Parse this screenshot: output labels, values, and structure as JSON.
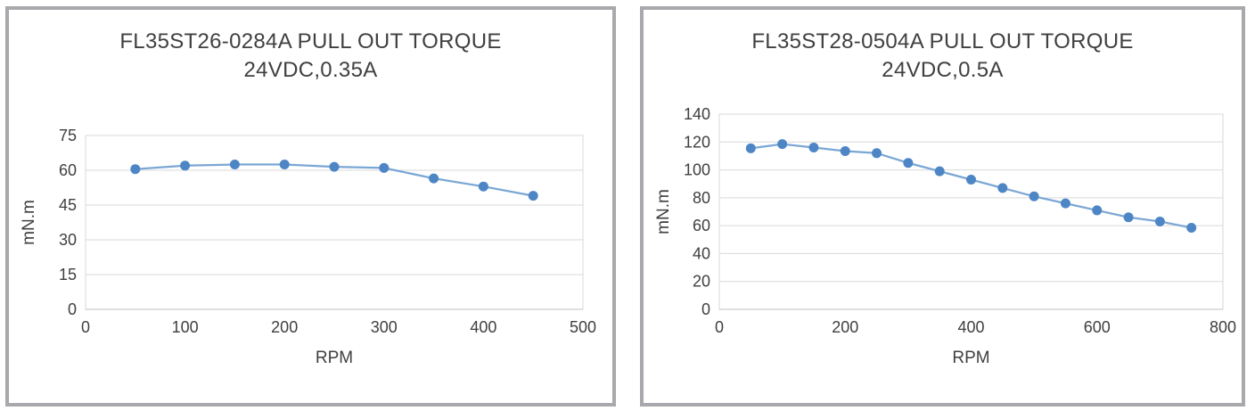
{
  "window": {
    "background": "#ffffff"
  },
  "colors": {
    "panel_border": "#a9a9ad",
    "grid": "#d9d9d9",
    "plot_border": "#d9d9d9",
    "axis_line": "#c2c2c2",
    "text": "#3f3f3f",
    "series_line": "#7ba7d4",
    "series_marker": "#4e86c5"
  },
  "chart_data": [
    {
      "type": "line",
      "title": "FL35ST26-0284A PULL OUT TORQUE 24VDC,0.35A",
      "title_line1": "FL35ST26-0284A PULL OUT TORQUE",
      "title_line2": "24VDC,0.35A",
      "xlabel": "RPM",
      "ylabel": "mN.m",
      "xlim": [
        0,
        500
      ],
      "ylim": [
        0,
        75
      ],
      "xticks": [
        0,
        100,
        200,
        300,
        400,
        500
      ],
      "yticks": [
        0,
        15,
        30,
        45,
        60,
        75
      ],
      "grid": "horizontal",
      "legend": "none",
      "series": [
        {
          "name": "pull-out-torque",
          "x": [
            50,
            100,
            150,
            200,
            250,
            300,
            350,
            400,
            450
          ],
          "y": [
            60.5,
            62,
            62.5,
            62.5,
            61.5,
            61,
            56.5,
            53,
            49
          ]
        }
      ]
    },
    {
      "type": "line",
      "title": "FL35ST28-0504A PULL OUT TORQUE 24VDC,0.5A",
      "title_line1": "FL35ST28-0504A PULL OUT TORQUE",
      "title_line2": "24VDC,0.5A",
      "xlabel": "RPM",
      "ylabel": "mN.m",
      "xlim": [
        0,
        800
      ],
      "ylim": [
        0,
        140
      ],
      "xticks": [
        0,
        200,
        400,
        600,
        800
      ],
      "yticks": [
        0,
        20,
        40,
        60,
        80,
        100,
        120,
        140
      ],
      "grid": "horizontal",
      "legend": "none",
      "series": [
        {
          "name": "pull-out-torque",
          "x": [
            50,
            100,
            150,
            200,
            250,
            300,
            350,
            400,
            450,
            500,
            550,
            600,
            650,
            700,
            750
          ],
          "y": [
            115.5,
            118.5,
            116,
            113.5,
            112,
            105,
            99,
            93,
            87,
            81,
            76,
            71,
            66,
            63,
            58.5
          ]
        }
      ]
    }
  ]
}
